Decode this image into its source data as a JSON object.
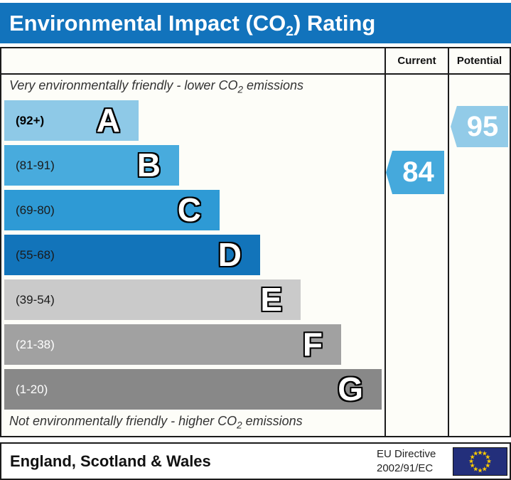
{
  "title": {
    "pre": "Environmental Impact (CO",
    "sub": "2",
    "post": ") Rating"
  },
  "header": {
    "current": "Current",
    "potential": "Potential"
  },
  "notes": {
    "top": {
      "pre": "Very environmentally friendly - lower CO",
      "sub": "2",
      "post": " emissions"
    },
    "bottom": {
      "pre": "Not environmentally friendly - higher CO",
      "sub": "2",
      "post": " emissions"
    }
  },
  "chart_data": {
    "type": "bar",
    "title": "Environmental Impact (CO2) Rating",
    "categories": [
      "A",
      "B",
      "C",
      "D",
      "E",
      "F",
      "G"
    ],
    "ranges": [
      "(92+)",
      "(81-91)",
      "(69-80)",
      "(55-68)",
      "(39-54)",
      "(21-38)",
      "(1-20)"
    ],
    "range_bounds": [
      [
        92,
        100
      ],
      [
        81,
        91
      ],
      [
        69,
        80
      ],
      [
        55,
        68
      ],
      [
        39,
        54
      ],
      [
        21,
        38
      ],
      [
        1,
        20
      ]
    ],
    "band_colors": [
      "#8EC9E7",
      "#48ABDD",
      "#2E9AD5",
      "#1274BA",
      "#CACACA",
      "#A1A1A1",
      "#888888"
    ],
    "label_colors": [
      "#000000",
      "#1A1A1A",
      "#1A1A1A",
      "#1A1A1A",
      "#1A1A1A",
      "#FFFFFF",
      "#FFFFFF"
    ],
    "label_bold": [
      true,
      false,
      false,
      false,
      false,
      false,
      false
    ],
    "columns": [
      "Current",
      "Potential"
    ],
    "current": {
      "value": 84,
      "band": "B"
    },
    "potential": {
      "value": 95,
      "band": "A"
    }
  },
  "footer": {
    "region": "England, Scotland & Wales",
    "directive_line1": "EU Directive",
    "directive_line2": "2002/91/EC",
    "flag_stars": 12
  },
  "colors": {
    "title_bar": "#1273BC",
    "title_text": "#FFFFFF",
    "table_bg": "#FDFDF8",
    "border": "#1B1B1B",
    "note_text": "#333333",
    "current_arrow": "#45A9DC",
    "potential_arrow": "#92CBE8",
    "arrow_text": "#FFFFFF",
    "flag_bg": "#232F7B",
    "flag_star": "#FFCC00"
  }
}
